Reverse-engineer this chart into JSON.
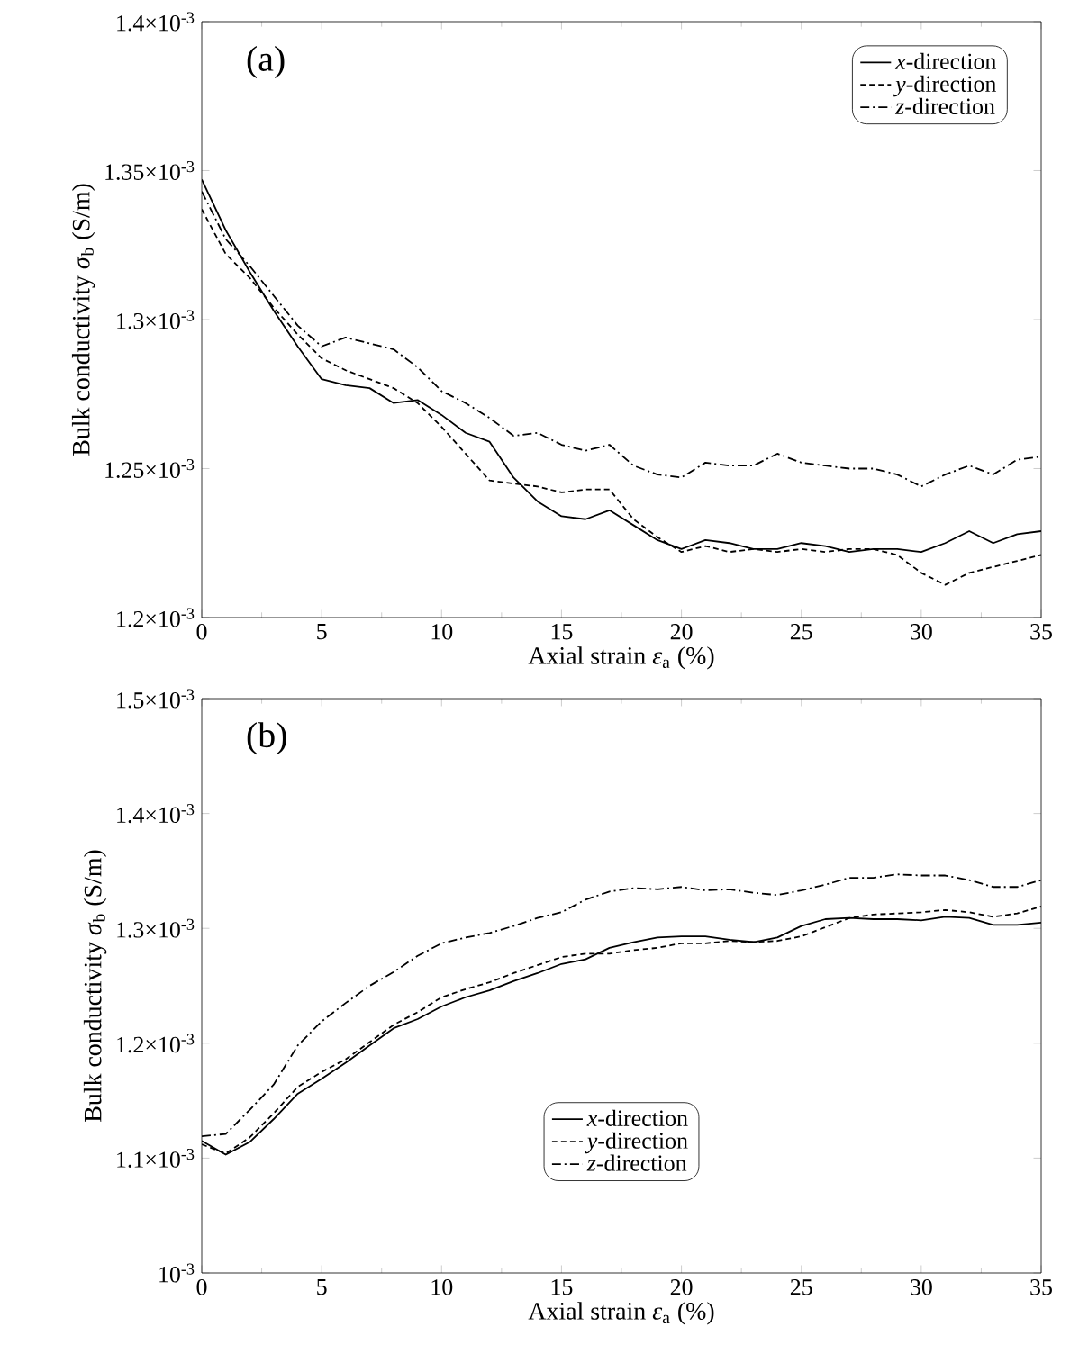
{
  "chart_data": [
    {
      "type": "line",
      "annotations": [
        "(a)"
      ],
      "xlabel": "Axial strain *ε*$_{a}$ (%)",
      "ylabel": "Bulk conductivity *σ*$_{b}$ (S/m)",
      "x": [
        0,
        1,
        2,
        3,
        4,
        5,
        6,
        7,
        8,
        9,
        10,
        11,
        12,
        13,
        14,
        15,
        16,
        17,
        18,
        19,
        20,
        21,
        22,
        23,
        24,
        25,
        26,
        27,
        28,
        29,
        30,
        31,
        32,
        33,
        34,
        35
      ],
      "xlim": [
        0,
        35
      ],
      "xticks": [
        0,
        5,
        10,
        15,
        20,
        25,
        30,
        35
      ],
      "ylim": [
        0.0012,
        0.0014
      ],
      "yticks": [
        {
          "value": 0.0012,
          "label": "1.2×10$^{-3}$"
        },
        {
          "value": 0.00125,
          "label": "1.25×10$^{-3}$"
        },
        {
          "value": 0.0013,
          "label": "1.3×10$^{-3}$"
        },
        {
          "value": 0.00135,
          "label": "1.35×10$^{-3}$"
        },
        {
          "value": 0.0014,
          "label": "1.4×10$^{-3}$"
        }
      ],
      "legend": "top right",
      "grid": false,
      "series": [
        {
          "name": "*x*-direction",
          "color": "#000000",
          "line_style": "solid",
          "values": [
            0.001347,
            0.00133,
            0.001316,
            0.001303,
            0.001291,
            0.00128,
            0.001278,
            0.001277,
            0.001272,
            0.001273,
            0.001268,
            0.001262,
            0.001259,
            0.001247,
            0.001239,
            0.001234,
            0.001233,
            0.001236,
            0.001231,
            0.001226,
            0.001223,
            0.001226,
            0.001225,
            0.001223,
            0.001223,
            0.001225,
            0.001224,
            0.001222,
            0.001223,
            0.001223,
            0.001222,
            0.001225,
            0.001229,
            0.001225,
            0.001228,
            0.001229
          ]
        },
        {
          "name": "*y*-direction",
          "color": "#000000",
          "line_style": "dashed",
          "values": [
            0.001337,
            0.001322,
            0.001314,
            0.001304,
            0.001295,
            0.001287,
            0.001283,
            0.00128,
            0.001277,
            0.001272,
            0.001264,
            0.001255,
            0.001246,
            0.001245,
            0.001244,
            0.001242,
            0.001243,
            0.001243,
            0.001233,
            0.001227,
            0.001222,
            0.001224,
            0.001222,
            0.001223,
            0.001222,
            0.001223,
            0.001222,
            0.001223,
            0.001223,
            0.001221,
            0.001215,
            0.001211,
            0.001215,
            0.001217,
            0.001219,
            0.001221
          ]
        },
        {
          "name": "*z*-direction",
          "color": "#000000",
          "line_style": "dashdot",
          "values": [
            0.001343,
            0.001327,
            0.001318,
            0.001308,
            0.001298,
            0.001291,
            0.001294,
            0.001292,
            0.00129,
            0.001284,
            0.001276,
            0.001272,
            0.001267,
            0.001261,
            0.001262,
            0.001258,
            0.001256,
            0.001258,
            0.001251,
            0.001248,
            0.001247,
            0.001252,
            0.001251,
            0.001251,
            0.001255,
            0.001252,
            0.001251,
            0.00125,
            0.00125,
            0.001248,
            0.001244,
            0.001248,
            0.001251,
            0.001248,
            0.001253,
            0.001254
          ]
        }
      ]
    },
    {
      "type": "line",
      "annotations": [
        "(b)"
      ],
      "xlabel": "Axial strain *ε*$_{a}$ (%)",
      "ylabel": "Bulk conductivity *σ*$_{b}$ (S/m)",
      "x": [
        0,
        1,
        2,
        3,
        4,
        5,
        6,
        7,
        8,
        9,
        10,
        11,
        12,
        13,
        14,
        15,
        16,
        17,
        18,
        19,
        20,
        21,
        22,
        23,
        24,
        25,
        26,
        27,
        28,
        29,
        30,
        31,
        32,
        33,
        34,
        35
      ],
      "xlim": [
        0,
        35
      ],
      "xticks": [
        0,
        5,
        10,
        15,
        20,
        25,
        30,
        35
      ],
      "ylim": [
        0.001,
        0.0015
      ],
      "yticks": [
        {
          "value": 0.001,
          "label": "10$^{-3}$"
        },
        {
          "value": 0.0011,
          "label": "1.1×10$^{-3}$"
        },
        {
          "value": 0.0012,
          "label": "1.2×10$^{-3}$"
        },
        {
          "value": 0.0013,
          "label": "1.3×10$^{-3}$"
        },
        {
          "value": 0.0014,
          "label": "1.4×10$^{-3}$"
        },
        {
          "value": 0.0015,
          "label": "1.5×10$^{-3}$"
        }
      ],
      "legend": "bottom",
      "grid": false,
      "series": [
        {
          "name": "*x*-direction",
          "color": "#000000",
          "line_style": "solid",
          "values": [
            0.001115,
            0.001103,
            0.001114,
            0.001134,
            0.001156,
            0.001169,
            0.001183,
            0.001198,
            0.001213,
            0.001221,
            0.001232,
            0.00124,
            0.001246,
            0.001254,
            0.001261,
            0.001269,
            0.001273,
            0.001283,
            0.001288,
            0.001292,
            0.001293,
            0.001293,
            0.00129,
            0.001288,
            0.001292,
            0.001302,
            0.001308,
            0.001309,
            0.001308,
            0.001308,
            0.001307,
            0.00131,
            0.001309,
            0.001303,
            0.001303,
            0.001305
          ]
        },
        {
          "name": "*y*-direction",
          "color": "#000000",
          "line_style": "dashed",
          "values": [
            0.001112,
            0.001104,
            0.001118,
            0.001139,
            0.001162,
            0.001175,
            0.001186,
            0.001201,
            0.001216,
            0.001227,
            0.00124,
            0.001247,
            0.001253,
            0.001261,
            0.001268,
            0.001275,
            0.001278,
            0.001278,
            0.001281,
            0.001283,
            0.001287,
            0.001287,
            0.001289,
            0.001288,
            0.001289,
            0.001293,
            0.001301,
            0.001309,
            0.001312,
            0.001313,
            0.001314,
            0.001316,
            0.001314,
            0.00131,
            0.001313,
            0.001319
          ]
        },
        {
          "name": "*z*-direction",
          "color": "#000000",
          "line_style": "dashdot",
          "values": [
            0.001119,
            0.001121,
            0.001142,
            0.001164,
            0.001198,
            0.001219,
            0.001235,
            0.00125,
            0.001262,
            0.001276,
            0.001287,
            0.001292,
            0.001296,
            0.001302,
            0.001309,
            0.001314,
            0.001325,
            0.001332,
            0.001335,
            0.001334,
            0.001336,
            0.001333,
            0.001334,
            0.001331,
            0.001329,
            0.001333,
            0.001338,
            0.001344,
            0.001344,
            0.001347,
            0.001346,
            0.001346,
            0.001342,
            0.001336,
            0.001336,
            0.001342
          ]
        }
      ]
    }
  ]
}
